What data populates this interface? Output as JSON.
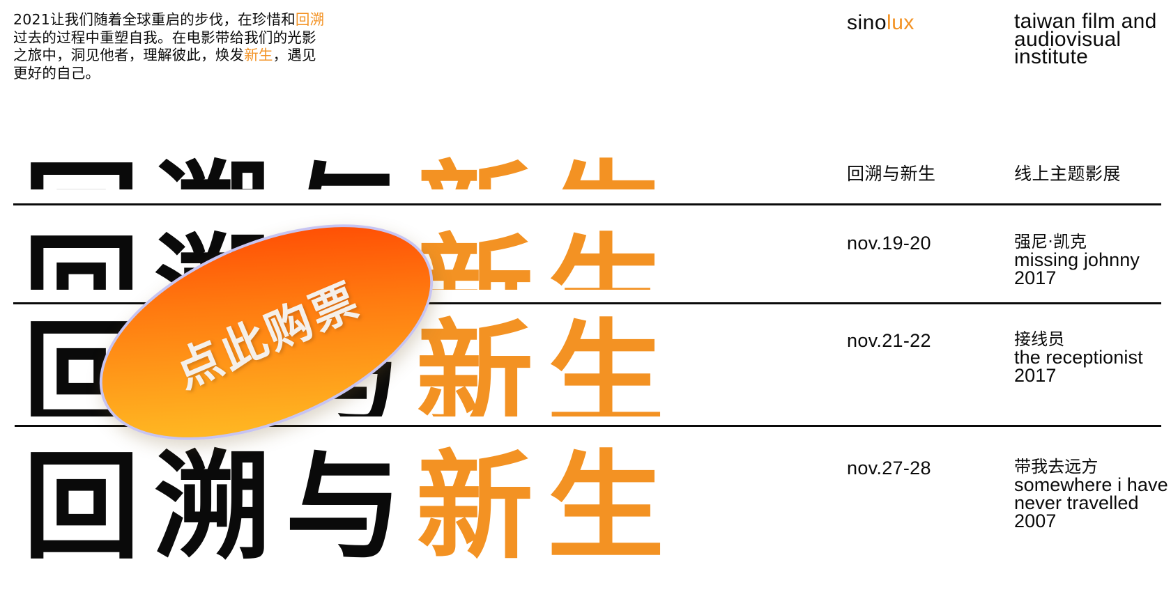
{
  "colors": {
    "accent": "#f39223",
    "text": "#0a0a0a",
    "background": "#ffffff"
  },
  "intro": {
    "p1": "2021让我们随着全球重启的步伐，在珍惜和",
    "hl1": "回溯",
    "p2": "过去的过程中重塑自我。在电影带给我们的光影之旅中，洞见他者，理解彼此，焕发",
    "hl2": "新生",
    "p3": "，遇见更好的自己。"
  },
  "logo": {
    "sino": "sino",
    "lux": "lux"
  },
  "institute": "taiwan film and audiovisual institute",
  "header_row": {
    "left": "回溯与新生",
    "right": "线上主题影展"
  },
  "title": {
    "black": "回溯与",
    "orange": "新生"
  },
  "screenings": [
    {
      "date": "nov.19-20",
      "zh": "强尼·凯克",
      "en": "missing johnny",
      "year": "2017"
    },
    {
      "date": "nov.21-22",
      "zh": "接线员",
      "en": "the receptionist",
      "year": "2017"
    },
    {
      "date": "nov.27-28",
      "zh": "带我去远方",
      "en": "somewhere i have never travelled",
      "year": "2007"
    }
  ],
  "ticket_button": {
    "label": "点此购票"
  }
}
